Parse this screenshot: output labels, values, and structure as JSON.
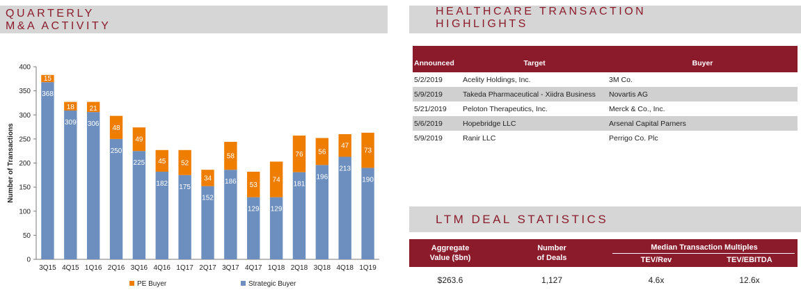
{
  "headers": {
    "ma": [
      "QUARTERLY",
      "M&A ACTIVITY"
    ],
    "healthcare": [
      "HEALTHCARE TRANSACTION",
      "HIGHLIGHTS"
    ],
    "ltm": "LTM DEAL STATISTICS"
  },
  "chart_data": {
    "type": "bar",
    "stacked": true,
    "ylabel": "Number of Transactions",
    "ylim": [
      0,
      400
    ],
    "yticks": [
      0,
      50,
      100,
      150,
      200,
      250,
      300,
      350,
      400
    ],
    "categories": [
      "3Q15",
      "4Q15",
      "1Q16",
      "2Q16",
      "3Q16",
      "4Q16",
      "1Q17",
      "2Q17",
      "3Q17",
      "4Q17",
      "1Q18",
      "2Q18",
      "3Q18",
      "4Q18",
      "1Q19"
    ],
    "series": [
      {
        "name": "Strategic Buyer",
        "color": "#6d8fbf",
        "values": [
          368,
          309,
          306,
          250,
          225,
          182,
          175,
          152,
          186,
          129,
          129,
          181,
          196,
          213,
          190
        ]
      },
      {
        "name": "PE Buyer",
        "color": "#ef7d00",
        "values": [
          15,
          18,
          21,
          48,
          49,
          45,
          52,
          34,
          58,
          53,
          74,
          76,
          56,
          47,
          73
        ]
      }
    ],
    "legend": [
      "PE Buyer",
      "Strategic Buyer"
    ],
    "legend_position": "bottom",
    "grid": false
  },
  "transactions": {
    "columns": [
      "Announced",
      "Target",
      "Buyer"
    ],
    "rows": [
      {
        "announced": "5/2/2019",
        "target": "Acelity Holdings, Inc.",
        "buyer": "3M Co."
      },
      {
        "announced": "5/9/2019",
        "target": "Takeda Pharmaceutical - Xiidra Business",
        "buyer": "Novartis AG"
      },
      {
        "announced": "5/21/2019",
        "target": "Peloton Therapeutics, Inc.",
        "buyer": "Merck & Co., Inc."
      },
      {
        "announced": "5/6/2019",
        "target": "Hopebridge LLC",
        "buyer": "Arsenal Capital Parners"
      },
      {
        "announced": "5/9/2019",
        "target": "Ranir LLC",
        "buyer": "Perrigo Co. Plc"
      }
    ]
  },
  "ltm": {
    "aggregate_label": [
      "Aggregate",
      "Value ($bn)"
    ],
    "number_label": [
      "Number",
      "of Deals"
    ],
    "median_label": "Median Transaction Multiples",
    "tev_rev_label": "TEV/Rev",
    "tev_ebitda_label": "TEV/EBITDA",
    "aggregate_value": "$263.6",
    "number_value": "1,127",
    "tev_rev_value": "4.6x",
    "tev_ebitda_value": "12.6x"
  }
}
